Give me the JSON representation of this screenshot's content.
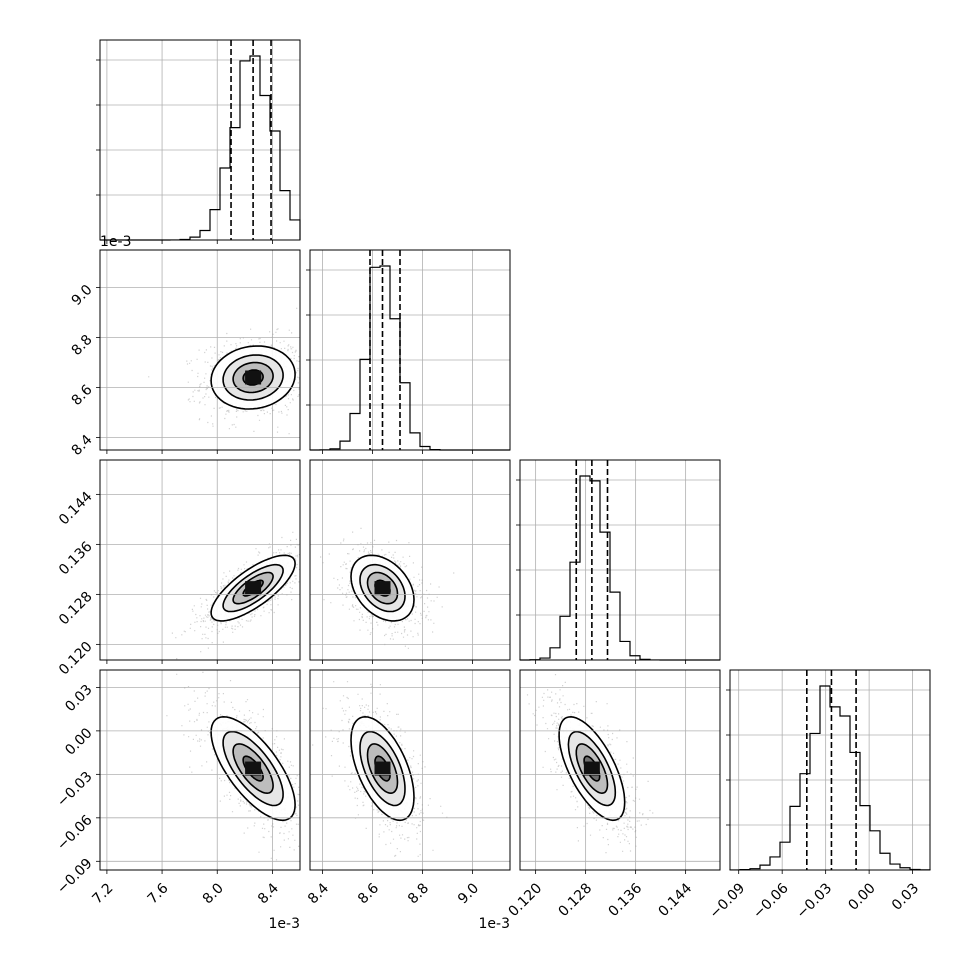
{
  "chart_data": {
    "type": "corner",
    "parameters": [
      {
        "axis_ticks": [
          "7.2",
          "7.6",
          "8.0",
          "8.4"
        ],
        "tick_values": [
          0.0072,
          0.0076,
          0.008,
          0.0084
        ],
        "range": [
          0.00715,
          0.0086
        ],
        "offset_label": "1e-3"
      },
      {
        "axis_ticks": [
          "8.4",
          "8.6",
          "8.8",
          "9.0"
        ],
        "tick_values": [
          0.0084,
          0.0086,
          0.0088,
          0.009
        ],
        "range": [
          0.00835,
          0.00915
        ],
        "offset_label": "1e-3"
      },
      {
        "axis_ticks": [
          "0.120",
          "0.128",
          "0.136",
          "0.144"
        ],
        "tick_values": [
          0.12,
          0.128,
          0.136,
          0.144
        ],
        "range": [
          0.1175,
          0.1495
        ]
      },
      {
        "axis_ticks": [
          "−0.09",
          "−0.06",
          "−0.03",
          "0.00",
          "0.03"
        ],
        "tick_values": [
          -0.09,
          -0.06,
          -0.03,
          0.0,
          0.03
        ],
        "range": [
          -0.096,
          0.042
        ]
      }
    ],
    "quantiles": [
      [
        0.0081,
        0.00826,
        0.00839
      ],
      [
        0.00859,
        0.00864,
        0.00871
      ],
      [
        0.1265,
        0.129,
        0.1315
      ],
      [
        -0.043,
        -0.026,
        -0.009
      ]
    ],
    "correlations": {
      "1_0": 0.1,
      "2_0": 0.75,
      "2_1": -0.35,
      "3_0": -0.7,
      "3_1": -0.55,
      "3_2": -0.65
    },
    "grid": true
  }
}
